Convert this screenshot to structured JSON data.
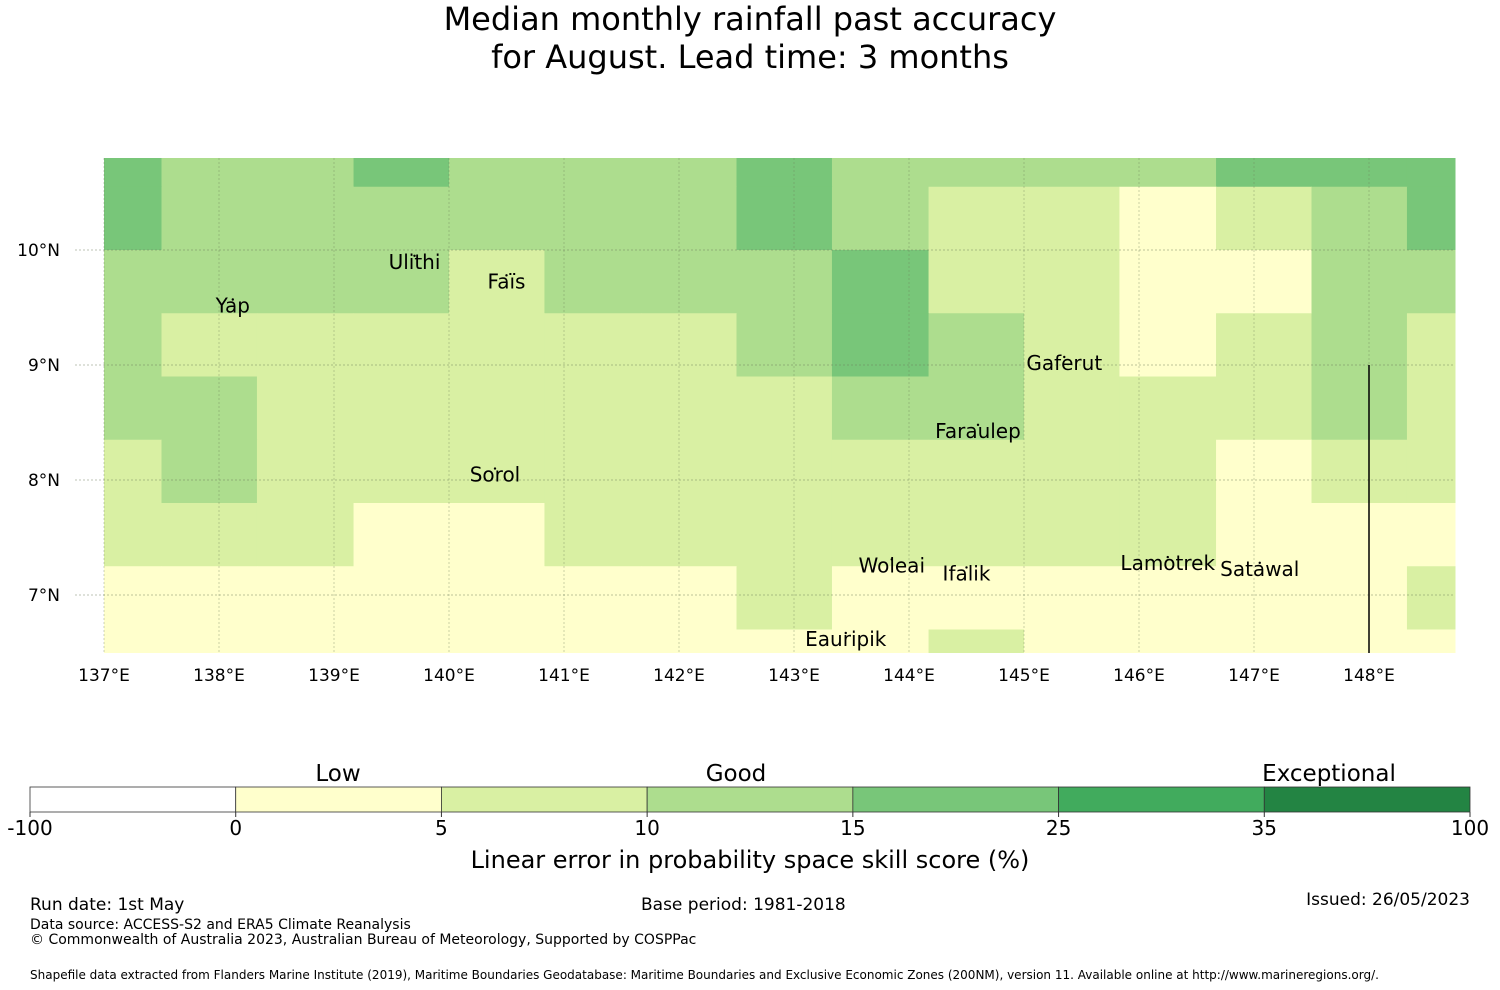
{
  "title": {
    "line1": "Median monthly rainfall past accuracy",
    "line2": "for August. Lead time: 3 months"
  },
  "map": {
    "lon_range": [
      137,
      149
    ],
    "lat_range": [
      6.5,
      10.8
    ],
    "lon_ticks": [
      "137°E",
      "138°E",
      "139°E",
      "140°E",
      "141°E",
      "142°E",
      "143°E",
      "144°E",
      "145°E",
      "146°E",
      "147°E",
      "148°E"
    ],
    "lat_ticks": [
      "10°N",
      "9°N",
      "8°N",
      "7°N"
    ],
    "palette": [
      "#ffffff",
      "#ffffcc",
      "#d9f0a3",
      "#addd8e",
      "#78c679",
      "#41ab5d",
      "#238443"
    ],
    "grid_columns_lon_edges": [
      137,
      137.5,
      138.33,
      139.17,
      140,
      140.83,
      141.67,
      142.5,
      143.33,
      144.17,
      145,
      145.83,
      146.67,
      147.5,
      148.33,
      149
    ],
    "grid_rows_lat_from_top": [
      10.8,
      10.55,
      10,
      9.45,
      8.9,
      8.35,
      7.8,
      7.25,
      6.7,
      6.5
    ],
    "grid_levels": [
      [
        4,
        3,
        3,
        4,
        3,
        3,
        3,
        4,
        3,
        3,
        3,
        3,
        4,
        4,
        4
      ],
      [
        4,
        3,
        3,
        3,
        3,
        3,
        3,
        4,
        3,
        2,
        2,
        1,
        2,
        3,
        4
      ],
      [
        3,
        3,
        3,
        3,
        2,
        3,
        3,
        3,
        4,
        2,
        2,
        1,
        1,
        3,
        3
      ],
      [
        3,
        2,
        2,
        2,
        2,
        2,
        2,
        3,
        4,
        3,
        2,
        1,
        2,
        3,
        2
      ],
      [
        3,
        3,
        2,
        2,
        2,
        2,
        2,
        2,
        3,
        3,
        2,
        2,
        2,
        3,
        2
      ],
      [
        2,
        3,
        2,
        2,
        2,
        2,
        2,
        2,
        2,
        2,
        2,
        2,
        1,
        2,
        2
      ],
      [
        2,
        2,
        2,
        1,
        1,
        2,
        2,
        2,
        2,
        2,
        2,
        2,
        1,
        1,
        1
      ],
      [
        1,
        1,
        1,
        1,
        1,
        1,
        1,
        2,
        1,
        1,
        1,
        1,
        1,
        1,
        2
      ],
      [
        1,
        1,
        1,
        1,
        1,
        1,
        1,
        1,
        1,
        2,
        1,
        1,
        1,
        1,
        1
      ]
    ],
    "islands": [
      {
        "name": "Yap",
        "lon": 138.12,
        "lat": 9.5
      },
      {
        "name": "Ulithi",
        "lon": 139.7,
        "lat": 9.88
      },
      {
        "name": "Faïs",
        "lon": 140.5,
        "lat": 9.71
      },
      {
        "name": "Gaferut",
        "lon": 145.35,
        "lat": 9.0
      },
      {
        "name": "Faraulep",
        "lon": 144.6,
        "lat": 8.41
      },
      {
        "name": "Sorol",
        "lon": 140.4,
        "lat": 8.03
      },
      {
        "name": "Woleai",
        "lon": 143.85,
        "lat": 7.24
      },
      {
        "name": "Ifalik",
        "lon": 144.5,
        "lat": 7.17
      },
      {
        "name": "Lamotrek",
        "lon": 146.25,
        "lat": 7.26
      },
      {
        "name": "Satawal",
        "lon": 147.05,
        "lat": 7.21
      },
      {
        "name": "Eauripik",
        "lon": 143.45,
        "lat": 6.6
      }
    ]
  },
  "legend": {
    "category_labels": [
      "Low",
      "Good",
      "Exceptional"
    ],
    "tick_labels": [
      "-100",
      "0",
      "5",
      "10",
      "15",
      "25",
      "35",
      "100"
    ],
    "axis_label": "Linear error in probability space skill score (%)"
  },
  "footer": {
    "run_date": "Run date: 1st May",
    "base_period": "Base period: 1981-2018",
    "issued": "Issued: 26/05/2023",
    "data_source": "Data source: ACCESS-S2 and ERA5 Climate Reanalysis",
    "copyright": "© Commonwealth of Australia 2023, Australian Bureau of Meteorology, Supported by COSPPac",
    "shapefile": "Shapefile data extracted from Flanders Marine Institute (2019), Maritime Boundaries Geodatabase: Maritime Boundaries and Exclusive Economic Zones (200NM), version 11. Available online at http://www.marineregions.org/."
  }
}
